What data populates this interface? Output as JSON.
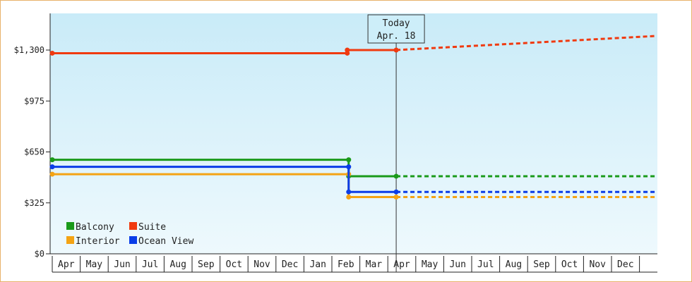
{
  "chart_data": {
    "type": "line",
    "y_ticks": [
      0,
      325,
      650,
      975,
      1300
    ],
    "y_tick_labels": [
      "$0",
      "$325",
      "$650",
      "$975",
      "$1,300"
    ],
    "ylim": [
      0,
      1300
    ],
    "x_months": [
      "Apr",
      "May",
      "Jun",
      "Jul",
      "Aug",
      "Sep",
      "Oct",
      "Nov",
      "Dec",
      "Jan",
      "Feb",
      "Mar",
      "Apr",
      "May",
      "Jun",
      "Jul",
      "Aug",
      "Sep",
      "Oct",
      "Nov",
      "Dec"
    ],
    "grid": false,
    "legend_placement": "bottom-left",
    "today_marker": {
      "month_index": 12.3,
      "line1": "Today",
      "line2": "Apr. 18"
    },
    "series": [
      {
        "name": "Balcony",
        "color": "#1a9a1a",
        "points": [
          [
            0,
            600
          ],
          [
            10.6,
            600
          ],
          [
            10.6,
            495
          ],
          [
            12.3,
            495
          ]
        ],
        "forecast": [
          [
            12.3,
            495
          ],
          [
            21.6,
            495
          ]
        ]
      },
      {
        "name": "Suite",
        "color": "#f03a10",
        "points": [
          [
            0,
            1280
          ],
          [
            10.55,
            1280
          ],
          [
            10.55,
            1300
          ],
          [
            12.3,
            1300
          ]
        ],
        "forecast": [
          [
            12.3,
            1300
          ],
          [
            21.6,
            1390
          ]
        ]
      },
      {
        "name": "Interior",
        "color": "#f4a314",
        "points": [
          [
            0,
            508
          ],
          [
            10.6,
            508
          ],
          [
            10.6,
            362
          ],
          [
            12.3,
            362
          ]
        ],
        "forecast": [
          [
            12.3,
            362
          ],
          [
            21.6,
            362
          ]
        ]
      },
      {
        "name": "Ocean View",
        "color": "#0a3de8",
        "points": [
          [
            0,
            555
          ],
          [
            10.6,
            555
          ],
          [
            10.6,
            395
          ],
          [
            12.3,
            395
          ]
        ],
        "forecast": [
          [
            12.3,
            395
          ],
          [
            21.6,
            395
          ]
        ]
      }
    ]
  }
}
